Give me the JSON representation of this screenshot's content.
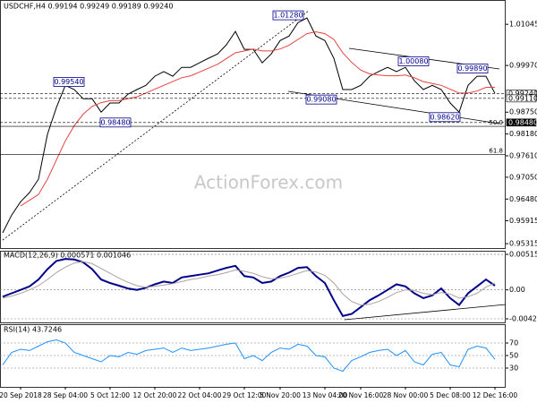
{
  "chart_data": [
    {
      "type": "line",
      "title": "USDCHF,H4  0.99194 0.99249 0.99189 0.99240",
      "watermark": "ActionForex.com",
      "categories": [
        null,
        null,
        "20 Sep 2018",
        null,
        null,
        null,
        null,
        "28 Sep 04:00",
        null,
        null,
        null,
        null,
        "5 Oct 12:00",
        null,
        null,
        null,
        null,
        "12 Oct 20:00",
        null,
        null,
        null,
        null,
        "22 Oct 04:00",
        null,
        null,
        null,
        null,
        "29 Oct 12:00",
        null,
        null,
        null,
        "5 Nov 20:00",
        null,
        null,
        null,
        null,
        "13 Nov 04:00",
        null,
        null,
        null,
        "20 Nov 16:00",
        null,
        null,
        null,
        null,
        "28 Nov 00:00",
        null,
        null,
        null,
        null,
        "5 Dec 08:00",
        null,
        null,
        null,
        null,
        "12 Dec 16:00"
      ],
      "series": [
        {
          "name": "USDCHF",
          "color": "#000000",
          "values": [
            0.956,
            0.9606,
            0.9641,
            0.9665,
            0.97,
            0.9817,
            0.9887,
            0.9945,
            0.9934,
            0.991,
            0.991,
            0.9875,
            0.9899,
            0.9899,
            0.9922,
            0.9934,
            0.9945,
            0.9969,
            0.9981,
            0.9969,
            0.9992,
            0.9992,
            1.0004,
            1.0016,
            1.0027,
            1.0051,
            1.0086,
            1.0039,
            1.0039,
            1.0004,
            1.0027,
            1.0062,
            1.0074,
            1.0109,
            1.0121,
            1.0074,
            1.0062,
            1.0016,
            0.9934,
            0.9934,
            0.9945,
            0.9969,
            0.9981,
            0.9992,
            0.9981,
            0.9992,
            0.9957,
            0.9934,
            0.9945,
            0.9934,
            0.9899,
            0.9875,
            0.9945,
            0.9969,
            0.9969,
            0.9924
          ]
        },
        {
          "name": "MA",
          "color": "#e8413e",
          "values": [
            null,
            null,
            0.963,
            0.9645,
            0.966,
            0.97,
            0.975,
            0.98,
            0.984,
            0.987,
            0.989,
            0.99,
            0.9905,
            0.9905,
            0.991,
            0.9915,
            0.9925,
            0.9935,
            0.9945,
            0.9955,
            0.9965,
            0.997,
            0.998,
            0.999,
            1.0,
            1.0015,
            1.003,
            1.0035,
            1.004,
            1.0035,
            1.0035,
            1.004,
            1.005,
            1.0065,
            1.008,
            1.0085,
            1.008,
            1.0065,
            1.003,
            1.0005,
            0.9985,
            0.9975,
            0.9972,
            0.997,
            0.997,
            0.9972,
            0.9965,
            0.9955,
            0.995,
            0.9945,
            0.9935,
            0.9925,
            0.9925,
            0.993,
            0.994,
            0.994
          ]
        }
      ],
      "ylim": [
        0.952,
        1.0168
      ],
      "yticks": [
        1.01045,
        {
          "value": 0.9997,
          "label": "0.99970"
        },
        {
          "value": 0.9875,
          "label": "0.98750"
        },
        {
          "value": 0.9818,
          "label": "0.98180"
        },
        {
          "value": 0.9761,
          "label": "0.97610"
        },
        {
          "value": 0.9705,
          "label": "0.97050"
        },
        {
          "value": 0.9648,
          "label": "0.96480"
        },
        0.95915,
        0.95315
      ],
      "annotations": [
        {
          "value": 1.0128,
          "label": "1.01280"
        },
        {
          "value": 0.9954,
          "label": "0.99540"
        },
        {
          "value": 0.9848,
          "label": "0.98480"
        },
        {
          "value": 0.9908,
          "label": "0.99080"
        },
        {
          "value": 1.0008,
          "label": "1.00080"
        },
        {
          "value": 0.9989,
          "label": "0.99890"
        },
        {
          "value": 0.9862,
          "label": "0.98620"
        }
      ],
      "levels": [
        {
          "value": 0.9924,
          "label": "0.99240",
          "fill": "#ffffff"
        },
        {
          "value": 0.9911,
          "label": "0.99110",
          "fill": "#ffffff"
        },
        {
          "value": 0.9848,
          "label": "0.98480",
          "fill": "#000000"
        }
      ],
      "fib": [
        {
          "value": 0.9838,
          "label": "50.0"
        },
        {
          "value": 0.9765,
          "label": "61.8"
        }
      ]
    },
    {
      "type": "line",
      "title": "MACD(12,26,9) 0.000571 0.001046",
      "series": [
        {
          "name": "MACD",
          "color": "#00008b",
          "values": [
            -0.001,
            -0.0005,
            0,
            0.0005,
            0.0015,
            0.003,
            0.0042,
            0.0045,
            0.0044,
            0.004,
            0.003,
            0.0015,
            0.001,
            0.0006,
            0.0002,
            0,
            0.0003,
            0.0008,
            0.0012,
            0.001,
            0.0018,
            0.002,
            0.0022,
            0.0024,
            0.0028,
            0.0032,
            0.0035,
            0.002,
            0.0018,
            0.001,
            0.0012,
            0.002,
            0.0025,
            0.0032,
            0.0033,
            0.002,
            0.001,
            -0.0015,
            -0.0038,
            -0.0035,
            -0.0025,
            -0.0015,
            -0.0008,
            0,
            0.0008,
            0.0005,
            -0.0005,
            -0.0012,
            -0.0008,
            0.0002,
            -0.0012,
            -0.0022,
            -0.0005,
            0.0005,
            0.0015,
            0.0006
          ]
        },
        {
          "name": "Signal",
          "color": "#b0a0a0",
          "values": [
            -0.0012,
            -0.0009,
            -0.0005,
            0,
            0.0006,
            0.0015,
            0.0025,
            0.0033,
            0.0039,
            0.0041,
            0.0038,
            0.0031,
            0.0024,
            0.0017,
            0.0011,
            0.0006,
            0.0004,
            0.0005,
            0.0007,
            0.0009,
            0.0012,
            0.0015,
            0.0017,
            0.002,
            0.0022,
            0.0025,
            0.0029,
            0.0027,
            0.0024,
            0.0019,
            0.0016,
            0.0017,
            0.002,
            0.0024,
            0.0028,
            0.0026,
            0.0021,
            0.001,
            -0.0006,
            -0.0017,
            -0.0022,
            -0.0021,
            -0.0017,
            -0.0011,
            -0.0004,
            0,
            -0.0001,
            -0.0005,
            -0.0007,
            -0.0004,
            -0.0006,
            -0.0012,
            -0.001,
            -0.0005,
            0.0004,
            0.001
          ]
        }
      ],
      "ylim": [
        -0.00473,
        0.00568
      ],
      "yticks": [
        0.005155,
        {
          "value": 0,
          "label": "0.00"
        },
        -0.004209
      ]
    },
    {
      "type": "line",
      "title": "RSI(14) 43.7246",
      "series": [
        {
          "name": "RSI",
          "color": "#1e90ff",
          "values": [
            35,
            55,
            60,
            58,
            65,
            72,
            75,
            70,
            55,
            50,
            45,
            40,
            50,
            48,
            55,
            52,
            58,
            60,
            62,
            55,
            62,
            58,
            60,
            62,
            65,
            68,
            70,
            45,
            50,
            42,
            55,
            62,
            60,
            68,
            65,
            50,
            48,
            30,
            25,
            42,
            48,
            55,
            58,
            60,
            50,
            58,
            40,
            35,
            52,
            55,
            35,
            32,
            60,
            65,
            62,
            44
          ]
        }
      ],
      "ylim": [
        0,
        100
      ],
      "yticks": [
        70,
        50,
        30
      ]
    }
  ]
}
